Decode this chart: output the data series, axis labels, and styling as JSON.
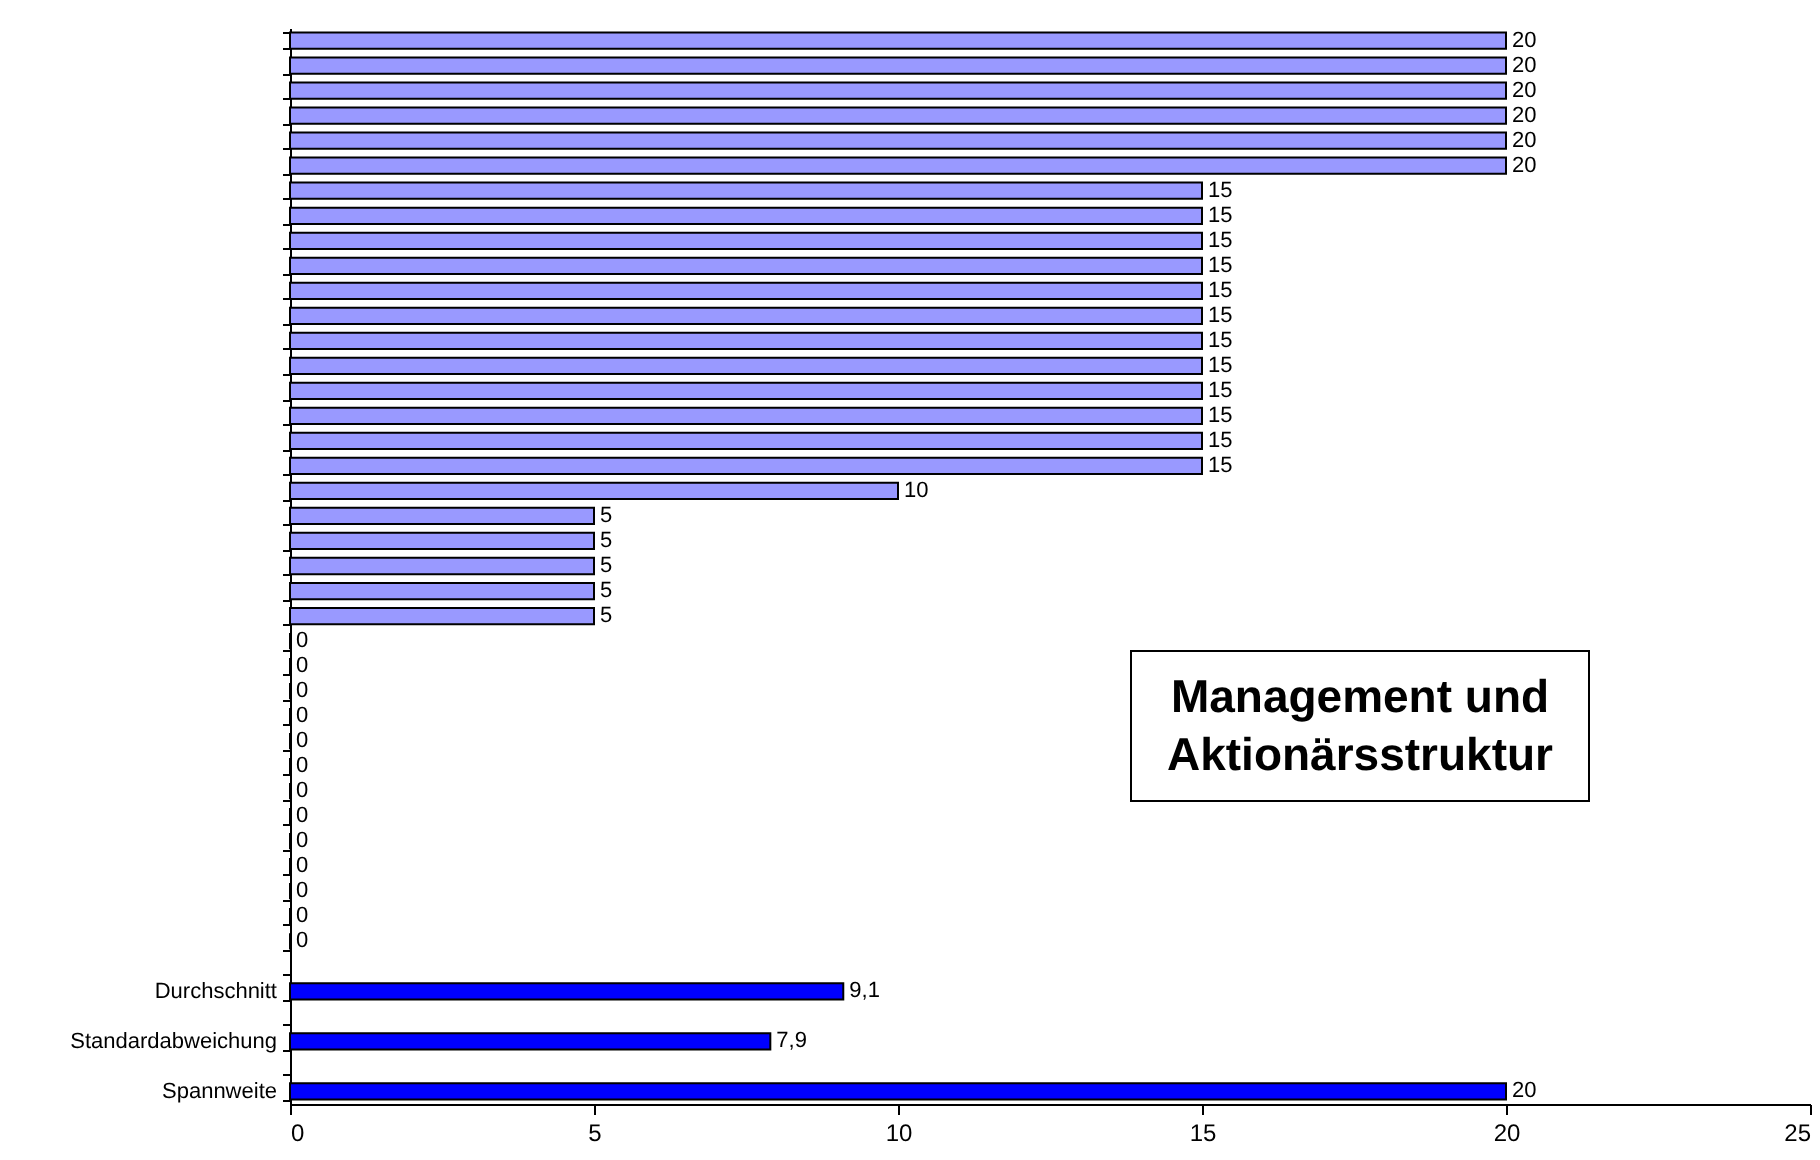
{
  "chart_data": {
    "type": "bar",
    "orientation": "horizontal",
    "title": "Management und Aktionärsstruktur",
    "categories": [
      null,
      null,
      null,
      null,
      null,
      null,
      null,
      null,
      null,
      null,
      null,
      null,
      null,
      null,
      null,
      null,
      null,
      null,
      null,
      null,
      null,
      null,
      null,
      null,
      null,
      null,
      null,
      null,
      null,
      null,
      null,
      null,
      null,
      null,
      null,
      null,
      null,
      null,
      "Durchschnitt",
      null,
      "Standardabweichung",
      null,
      "Spannweite"
    ],
    "values": [
      20,
      20,
      20,
      20,
      20,
      20,
      15,
      15,
      15,
      15,
      15,
      15,
      15,
      15,
      15,
      15,
      15,
      15,
      10,
      5,
      5,
      5,
      5,
      5,
      0,
      0,
      0,
      0,
      0,
      0,
      0,
      0,
      0,
      0,
      0,
      0,
      0,
      null,
      9.1,
      null,
      7.9,
      null,
      20
    ],
    "colors": [
      "#9999ff",
      "#9999ff",
      "#9999ff",
      "#9999ff",
      "#9999ff",
      "#9999ff",
      "#9999ff",
      "#9999ff",
      "#9999ff",
      "#9999ff",
      "#9999ff",
      "#9999ff",
      "#9999ff",
      "#9999ff",
      "#9999ff",
      "#9999ff",
      "#9999ff",
      "#9999ff",
      "#9999ff",
      "#9999ff",
      "#9999ff",
      "#9999ff",
      "#9999ff",
      "#9999ff",
      "#9999ff",
      "#9999ff",
      "#9999ff",
      "#9999ff",
      "#9999ff",
      "#9999ff",
      "#9999ff",
      "#9999ff",
      "#9999ff",
      "#9999ff",
      "#9999ff",
      "#9999ff",
      "#9999ff",
      null,
      "#0000ff",
      null,
      "#0000ff",
      null,
      "#0000ff"
    ],
    "value_labels": [
      "20",
      "20",
      "20",
      "20",
      "20",
      "20",
      "15",
      "15",
      "15",
      "15",
      "15",
      "15",
      "15",
      "15",
      "15",
      "15",
      "15",
      "15",
      "10",
      "5",
      "5",
      "5",
      "5",
      "5",
      "0",
      "0",
      "0",
      "0",
      "0",
      "0",
      "0",
      "0",
      "0",
      "0",
      "0",
      "0",
      "0",
      null,
      "9,1",
      null,
      "7,9",
      null,
      "20"
    ],
    "xlim": [
      0,
      25
    ],
    "xticks": [
      0,
      5,
      10,
      15,
      20,
      25
    ],
    "grid": false
  }
}
